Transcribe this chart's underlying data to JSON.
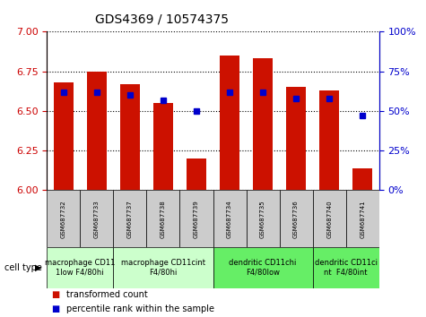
{
  "title": "GDS4369 / 10574375",
  "samples": [
    "GSM687732",
    "GSM687733",
    "GSM687737",
    "GSM687738",
    "GSM687739",
    "GSM687734",
    "GSM687735",
    "GSM687736",
    "GSM687740",
    "GSM687741"
  ],
  "red_values": [
    6.68,
    6.75,
    6.67,
    6.55,
    6.2,
    6.85,
    6.83,
    6.65,
    6.63,
    6.14
  ],
  "blue_values_pct": [
    62,
    62,
    60,
    57,
    50,
    62,
    62,
    58,
    58,
    47
  ],
  "ylim_left": [
    6.0,
    7.0
  ],
  "ylim_right": [
    0,
    100
  ],
  "yticks_left": [
    6.0,
    6.25,
    6.5,
    6.75,
    7.0
  ],
  "yticks_right": [
    0,
    25,
    50,
    75,
    100
  ],
  "cell_types": [
    {
      "label": "macrophage CD11\n1low F4/80hi",
      "start": 0,
      "end": 2,
      "color": "#ccffcc"
    },
    {
      "label": "macrophage CD11cint\nF4/80hi",
      "start": 2,
      "end": 5,
      "color": "#ccffcc"
    },
    {
      "label": "dendritic CD11chi\nF4/80low",
      "start": 5,
      "end": 8,
      "color": "#66ee66"
    },
    {
      "label": "dendritic CD11ci\nnt  F4/80int",
      "start": 8,
      "end": 10,
      "color": "#66ee66"
    }
  ],
  "bar_color_red": "#cc1100",
  "bar_color_blue": "#0000cc",
  "bar_width": 0.6,
  "tick_label_color_left": "#cc0000",
  "tick_label_color_right": "#0000cc",
  "bg_color": "#ffffff",
  "plot_bg_color": "#ffffff",
  "sample_box_color": "#cccccc",
  "title_fontsize": 10,
  "tick_fontsize": 8,
  "sample_fontsize": 5,
  "cell_type_fontsize": 6,
  "legend_fontsize": 7
}
